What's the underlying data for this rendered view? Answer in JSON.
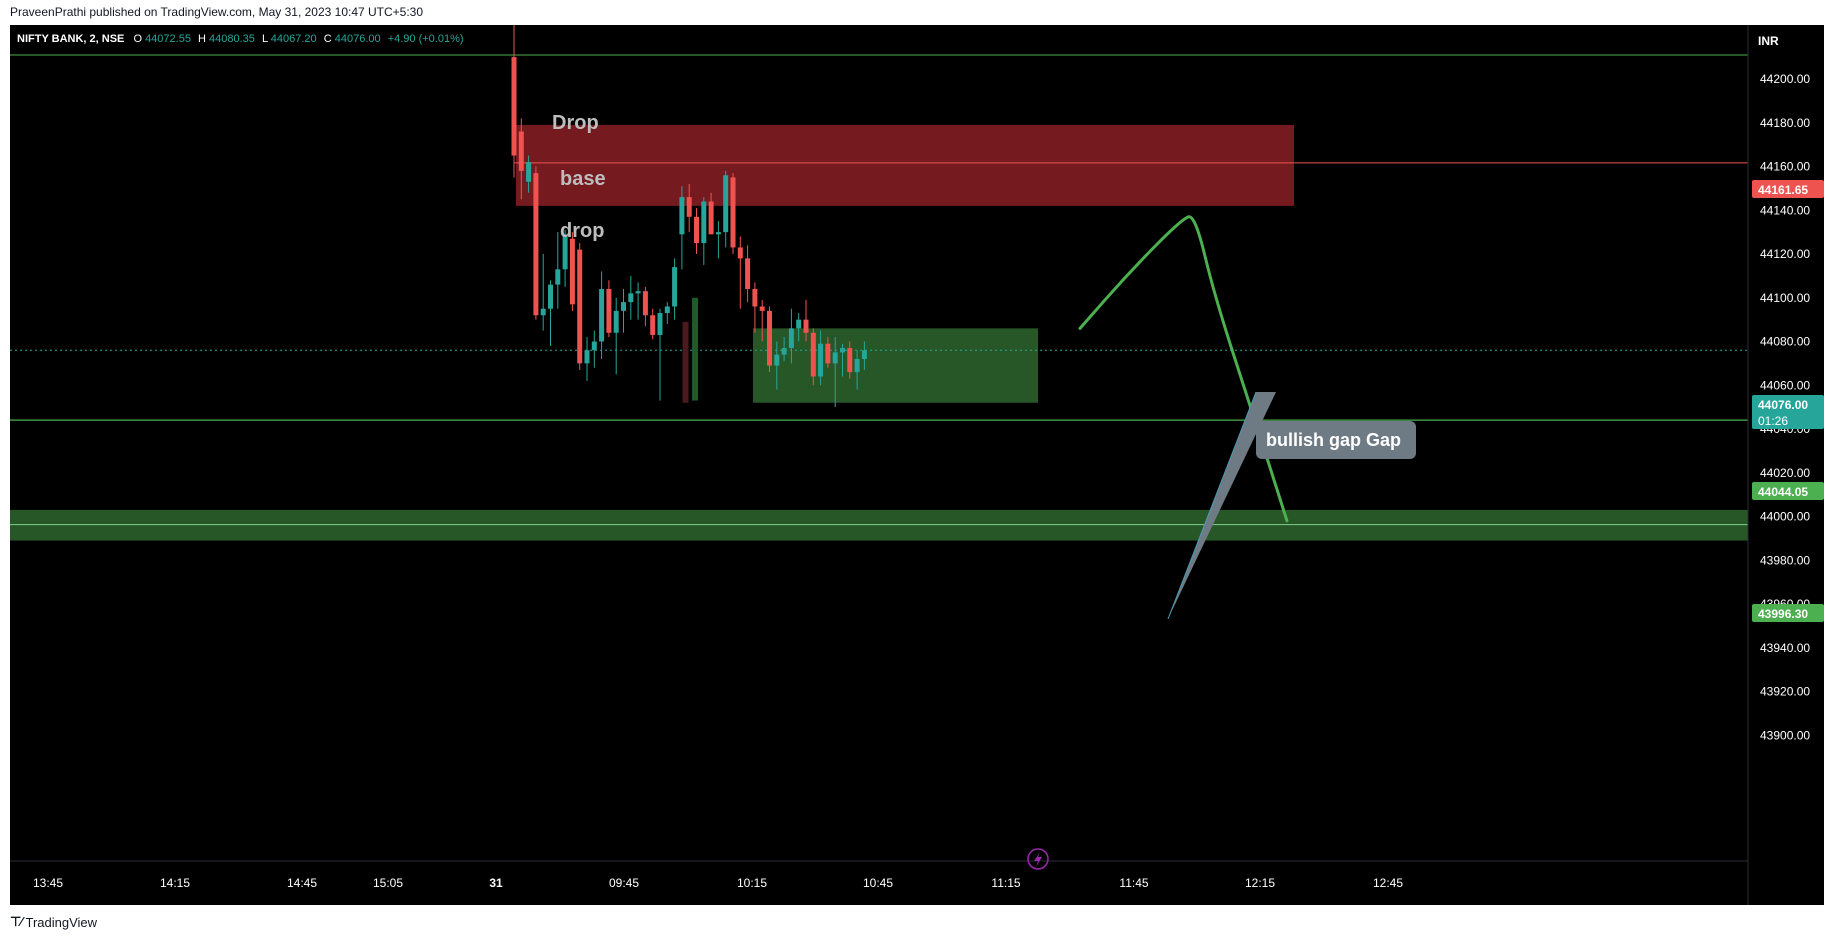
{
  "header": {
    "published": "PraveenPrathi published on TradingView.com, May 31, 2023 10:47 UTC+5:30"
  },
  "footer": {
    "brand": "TradingView"
  },
  "legend": {
    "symbol": "NIFTY BANK, 2, NSE",
    "o_label": "O",
    "o_value": "44072.55",
    "h_label": "H",
    "h_value": "44080.35",
    "l_label": "L",
    "l_value": "44067.20",
    "c_label": "C",
    "c_value": "44076.00",
    "change": "+4.90 (+0.01%)"
  },
  "currency": "INR",
  "colors": {
    "background": "#000000",
    "up": "#26a69a",
    "down": "#ef5350",
    "supply_zone": "#8a1e24",
    "demand_zone": "#2b5f2b",
    "level_line": "#4caf50",
    "drawing_green": "#4caf50",
    "price_badge": "#26a69a"
  },
  "annotations": {
    "drop_upper": "Drop",
    "base": "base",
    "drop_lower": "drop",
    "callout": "bullish gap Gap",
    "replay_icon": "lightning-icon"
  },
  "price_badges": {
    "supply_level": "44161.65",
    "current_price": "44076.00",
    "countdown": "01:26",
    "level_mid": "44044.05",
    "level_low": "43996.30"
  },
  "chart_data": {
    "type": "candlestick",
    "title": "NIFTY BANK, 2, NSE",
    "ylim": [
      43895,
      44215
    ],
    "y_ticks": [
      "44200.00",
      "44180.00",
      "44160.00",
      "44140.00",
      "44120.00",
      "44100.00",
      "44080.00",
      "44060.00",
      "44040.00",
      "44020.00",
      "44000.00",
      "43980.00",
      "43960.00",
      "43940.00",
      "43920.00",
      "43900.00"
    ],
    "x_ticks": [
      "13:45",
      "14:15",
      "14:45",
      "15:05",
      "31",
      "09:45",
      "10:15",
      "10:45",
      "11:15",
      "11:45",
      "12:15",
      "12:45"
    ],
    "candles": [
      {
        "o": 44210,
        "h": 44230,
        "l": 44155,
        "c": 44165
      },
      {
        "o": 44176,
        "h": 44182,
        "l": 44145,
        "c": 44158
      },
      {
        "o": 44153,
        "h": 44165,
        "l": 44148,
        "c": 44162
      },
      {
        "o": 44157,
        "h": 44160,
        "l": 44090,
        "c": 44092
      },
      {
        "o": 44092,
        "h": 44120,
        "l": 44085,
        "c": 44095
      },
      {
        "o": 44095,
        "h": 44108,
        "l": 44078,
        "c": 44106
      },
      {
        "o": 44106,
        "h": 44130,
        "l": 44095,
        "c": 44113
      },
      {
        "o": 44113,
        "h": 44131,
        "l": 44105,
        "c": 44129
      },
      {
        "o": 44127,
        "h": 44130,
        "l": 44094,
        "c": 44097
      },
      {
        "o": 44122,
        "h": 44125,
        "l": 44067,
        "c": 44070
      },
      {
        "o": 44070,
        "h": 44082,
        "l": 44062,
        "c": 44076
      },
      {
        "o": 44076,
        "h": 44085,
        "l": 44068,
        "c": 44080
      },
      {
        "o": 44080,
        "h": 44112,
        "l": 44072,
        "c": 44104
      },
      {
        "o": 44104,
        "h": 44108,
        "l": 44082,
        "c": 44084
      },
      {
        "o": 44084,
        "h": 44100,
        "l": 44065,
        "c": 44094
      },
      {
        "o": 44094,
        "h": 44104,
        "l": 44084,
        "c": 44098
      },
      {
        "o": 44098,
        "h": 44110,
        "l": 44090,
        "c": 44102
      },
      {
        "o": 44102,
        "h": 44107,
        "l": 44090,
        "c": 44103
      },
      {
        "o": 44103,
        "h": 44105,
        "l": 44087,
        "c": 44092
      },
      {
        "o": 44092,
        "h": 44095,
        "l": 44081,
        "c": 44083
      },
      {
        "o": 44083,
        "h": 44095,
        "l": 44053,
        "c": 44093
      },
      {
        "o": 44093,
        "h": 44098,
        "l": 44088,
        "c": 44096
      },
      {
        "o": 44096,
        "h": 44118,
        "l": 44090,
        "c": 44114
      },
      {
        "o": 44129,
        "h": 44151,
        "l": 44113,
        "c": 44146
      },
      {
        "o": 44146,
        "h": 44152,
        "l": 44130,
        "c": 44137
      },
      {
        "o": 44137,
        "h": 44141,
        "l": 44120,
        "c": 44125
      },
      {
        "o": 44125,
        "h": 44146,
        "l": 44115,
        "c": 44144
      },
      {
        "o": 44144,
        "h": 44148,
        "l": 44130,
        "c": 44129
      },
      {
        "o": 44129,
        "h": 44135,
        "l": 44118,
        "c": 44130
      },
      {
        "o": 44130,
        "h": 44158,
        "l": 44123,
        "c": 44156
      },
      {
        "o": 44155,
        "h": 44157,
        "l": 44120,
        "c": 44123
      },
      {
        "o": 44123,
        "h": 44128,
        "l": 44095,
        "c": 44118
      },
      {
        "o": 44118,
        "h": 44124,
        "l": 44098,
        "c": 44104
      },
      {
        "o": 44104,
        "h": 44107,
        "l": 44084,
        "c": 44096
      },
      {
        "o": 44096,
        "h": 44099,
        "l": 44080,
        "c": 44094
      },
      {
        "o": 44094,
        "h": 44096,
        "l": 44066,
        "c": 44069
      },
      {
        "o": 44069,
        "h": 44080,
        "l": 44058,
        "c": 44074
      },
      {
        "o": 44074,
        "h": 44082,
        "l": 44071,
        "c": 44077
      },
      {
        "o": 44077,
        "h": 44095,
        "l": 44070,
        "c": 44086
      },
      {
        "o": 44086,
        "h": 44093,
        "l": 44080,
        "c": 44090
      },
      {
        "o": 44090,
        "h": 44099,
        "l": 44080,
        "c": 44084
      },
      {
        "o": 44084,
        "h": 44086,
        "l": 44060,
        "c": 44064
      },
      {
        "o": 44064,
        "h": 44085,
        "l": 44060,
        "c": 44079
      },
      {
        "o": 44079,
        "h": 44082,
        "l": 44068,
        "c": 44070
      },
      {
        "o": 44070,
        "h": 44082,
        "l": 44050,
        "c": 44075
      },
      {
        "o": 44075,
        "h": 44079,
        "l": 44064,
        "c": 44077
      },
      {
        "o": 44077,
        "h": 44080,
        "l": 44063,
        "c": 44066
      },
      {
        "o": 44066,
        "h": 44076,
        "l": 44058,
        "c": 44072
      },
      {
        "o": 44072,
        "h": 44080,
        "l": 44067,
        "c": 44076
      }
    ],
    "ghost_bars": [
      {
        "x_index": 23.5,
        "high": 44089,
        "low": 44052,
        "direction": "down"
      },
      {
        "x_index": 24.8,
        "high": 44100,
        "low": 44053,
        "direction": "up"
      }
    ],
    "zones": [
      {
        "name": "supply",
        "top": 44179,
        "bottom": 44142,
        "start": "31",
        "extends_to": "12:15"
      },
      {
        "name": "gap",
        "top": 44086,
        "bottom": 44052,
        "start": "10:15",
        "extends_to": "11:15"
      },
      {
        "name": "demand",
        "top": 44003,
        "bottom": 43989,
        "start": "chart start",
        "extends_to": "chart end"
      }
    ],
    "levels": [
      {
        "name": "supply_level",
        "value": 44161.65
      },
      {
        "name": "current_price",
        "value": 44076.0
      },
      {
        "name": "level_mid",
        "value": 44044.05
      },
      {
        "name": "level_low",
        "value": 43996.3
      },
      {
        "name": "top_line",
        "value": 44211
      }
    ],
    "projection": [
      {
        "time": "10:55",
        "price": 44086
      },
      {
        "time": "11:05",
        "price": 44112
      },
      {
        "time": "11:15",
        "price": 44136
      },
      {
        "time": "11:18",
        "price": 44138
      },
      {
        "time": "11:25",
        "price": 44100
      },
      {
        "time": "11:32",
        "price": 44044
      },
      {
        "time": "11:37",
        "price": 43998
      }
    ]
  }
}
